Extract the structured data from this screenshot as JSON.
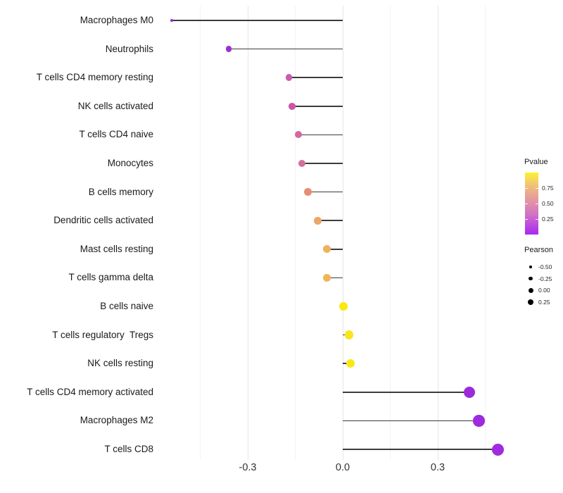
{
  "chart_data": {
    "type": "lollipop",
    "orientation": "horizontal",
    "title": "",
    "xlabel": "",
    "ylabel": "",
    "baseline": 0,
    "x_axis": {
      "ticks": [
        -0.3,
        0.0,
        0.3
      ],
      "tick_labels": [
        "-0.3",
        "0.0",
        "0.3"
      ],
      "major_gridlines": [
        -0.3,
        0.0,
        0.3
      ],
      "minor_gridlines": [
        -0.45,
        -0.15,
        0.15,
        0.45
      ],
      "range": [
        -0.59,
        0.54
      ]
    },
    "rows": [
      {
        "label": "Macrophages M0",
        "pearson": -0.54,
        "color": "#9B2FD5",
        "radius": 1.8
      },
      {
        "label": "Neutrophils",
        "pearson": -0.36,
        "color": "#9C30D3",
        "radius": 4.2
      },
      {
        "label": "T cells CD4 memory resting",
        "pearson": -0.17,
        "color": "#CB5BAE",
        "radius": 4.8
      },
      {
        "label": "NK cells activated",
        "pearson": -0.16,
        "color": "#CB57A3",
        "radius": 4.8
      },
      {
        "label": "T cells CD4 naive",
        "pearson": -0.14,
        "color": "#D2689D",
        "radius": 5.0
      },
      {
        "label": "Monocytes",
        "pearson": -0.13,
        "color": "#D46F99",
        "radius": 5.0
      },
      {
        "label": "B cells memory",
        "pearson": -0.11,
        "color": "#E68E74",
        "radius": 5.2
      },
      {
        "label": "Dendritic cells activated",
        "pearson": -0.08,
        "color": "#ECA467",
        "radius": 5.5
      },
      {
        "label": "Mast cells resting",
        "pearson": -0.05,
        "color": "#F0B25B",
        "radius": 5.7
      },
      {
        "label": "T cells gamma delta",
        "pearson": -0.05,
        "color": "#F0B656",
        "radius": 5.7
      },
      {
        "label": "B cells naive",
        "pearson": 0.002,
        "color": "#FAE90E",
        "radius": 6.0
      },
      {
        "label": "T cells regulatory  Tregs",
        "pearson": 0.02,
        "color": "#F8E61D",
        "radius": 6.2
      },
      {
        "label": "NK cells resting",
        "pearson": 0.025,
        "color": "#F8E81A",
        "radius": 6.2
      },
      {
        "label": "T cells CD4 memory activated",
        "pearson": 0.4,
        "color": "#9C2ADA",
        "radius": 8.0
      },
      {
        "label": "Macrophages M2",
        "pearson": 0.43,
        "color": "#9D2ADC",
        "radius": 8.2
      },
      {
        "label": "T cells CD8",
        "pearson": 0.49,
        "color": "#A02BE1",
        "radius": 8.5
      }
    ]
  },
  "legend": {
    "pvalue": {
      "title": "Pvalue",
      "tick_labels": [
        "0.75",
        "0.50",
        "0.25"
      ],
      "gradient_top_to_bottom": [
        "#FBF32B",
        "#F2CB6E",
        "#EAA98F",
        "#E08FAB",
        "#D273C3",
        "#BC4EDC",
        "#A928F0"
      ]
    },
    "pearson": {
      "title": "Pearson",
      "items": [
        {
          "label": "-0.50",
          "radius": 1.8
        },
        {
          "label": "-0.25",
          "radius": 2.7
        },
        {
          "label": "0.00",
          "radius": 3.5
        },
        {
          "label": "0.25",
          "radius": 4.0
        }
      ]
    }
  }
}
